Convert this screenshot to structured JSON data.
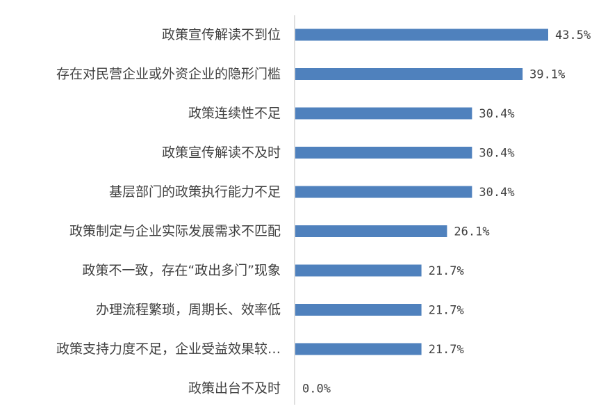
{
  "chart_data": {
    "type": "bar",
    "orientation": "horizontal",
    "categories": [
      "政策宣传解读不到位",
      "存在对民营企业或外资企业的隐形门槛",
      "政策连续性不足",
      "政策宣传解读不及时",
      "基层部门的政策执行能力不足",
      "政策制定与企业实际发展需求不匹配",
      "政策不一致，存在“政出多门”现象",
      "办理流程繁琐，周期长、效率低",
      "政策支持力度不足，企业受益效果较…",
      "政策出台不及时"
    ],
    "values": [
      43.5,
      39.1,
      30.4,
      30.4,
      30.4,
      26.1,
      21.7,
      21.7,
      21.7,
      0.0
    ],
    "value_labels": [
      "43.5%",
      "39.1%",
      "30.4%",
      "30.4%",
      "30.4%",
      "26.1%",
      "21.7%",
      "21.7%",
      "21.7%",
      "0.0%"
    ],
    "xlim": [
      0,
      43.5
    ],
    "grid": false,
    "legend": "none",
    "bar_color": "#4f81bd",
    "axis_color": "#bfbfbf",
    "text_color": "#404040"
  }
}
